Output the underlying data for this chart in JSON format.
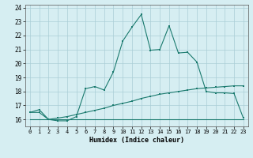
{
  "xlabel": "Humidex (Indice chaleur)",
  "ylabel": "",
  "xlim": [
    -0.5,
    23.5
  ],
  "ylim": [
    15.5,
    24.2
  ],
  "xticks": [
    0,
    1,
    2,
    3,
    4,
    5,
    6,
    7,
    8,
    9,
    10,
    11,
    12,
    13,
    14,
    15,
    16,
    17,
    18,
    19,
    20,
    21,
    22,
    23
  ],
  "yticks": [
    16,
    17,
    18,
    19,
    20,
    21,
    22,
    23,
    24
  ],
  "bg_color": "#d6eef2",
  "grid_color": "#aacdd6",
  "line_color": "#1a7a6e",
  "line1_x": [
    0,
    1,
    2,
    3,
    4,
    5,
    6,
    7,
    8,
    9,
    10,
    11,
    12,
    13,
    14,
    15,
    16,
    17,
    18,
    19,
    20,
    21,
    22,
    23
  ],
  "line1_y": [
    16.5,
    16.7,
    16.0,
    15.9,
    15.9,
    16.2,
    18.2,
    18.35,
    18.1,
    19.4,
    21.6,
    22.6,
    23.5,
    20.95,
    21.0,
    22.7,
    20.75,
    20.8,
    20.1,
    18.0,
    17.9,
    17.9,
    17.85,
    16.1
  ],
  "line2_x": [
    0,
    1,
    2,
    3,
    4,
    5,
    6,
    7,
    8,
    9,
    10,
    11,
    12,
    13,
    14,
    15,
    16,
    17,
    18,
    19,
    20,
    21,
    22,
    23
  ],
  "line2_y": [
    16.5,
    16.5,
    16.0,
    16.1,
    16.2,
    16.35,
    16.5,
    16.65,
    16.8,
    17.0,
    17.15,
    17.3,
    17.5,
    17.65,
    17.8,
    17.9,
    18.0,
    18.1,
    18.2,
    18.25,
    18.3,
    18.35,
    18.4,
    18.4
  ],
  "line3_x": [
    0,
    1,
    2,
    3,
    4,
    5,
    6,
    7,
    8,
    9,
    10,
    11,
    12,
    13,
    14,
    15,
    16,
    17,
    18,
    19,
    20,
    21,
    22,
    23
  ],
  "line3_y": [
    16.0,
    16.0,
    16.0,
    16.0,
    16.0,
    16.0,
    16.0,
    16.0,
    16.0,
    16.0,
    16.0,
    16.0,
    16.0,
    16.0,
    16.0,
    16.0,
    16.0,
    16.0,
    16.0,
    16.0,
    16.0,
    16.0,
    16.0,
    16.0
  ]
}
